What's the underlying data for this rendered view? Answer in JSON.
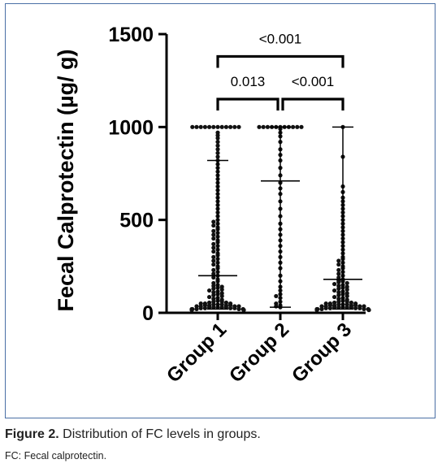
{
  "chart_data": {
    "type": "scatter",
    "ylabel": "Fecal Calprotectin  (µg/ g)",
    "yticks": [
      0,
      500,
      1000,
      1500
    ],
    "ylim": [
      0,
      1500
    ],
    "categories": [
      "Group 1",
      "Group 2",
      "Group 3"
    ],
    "summary": [
      {
        "category": "Group 1",
        "median": 200,
        "upper": 820,
        "lower": 20
      },
      {
        "category": "Group 2",
        "median": 710,
        "upper": 1000,
        "lower": 30
      },
      {
        "category": "Group 3",
        "median": 180,
        "upper": 1000,
        "lower": 20
      }
    ],
    "brackets": [
      {
        "from": "Group 1",
        "to": "Group 3",
        "label": "<0.001",
        "y": 1380
      },
      {
        "from": "Group 1",
        "to": "Group 2",
        "label": "0.013",
        "y": 1150
      },
      {
        "from": "Group 2",
        "to": "Group 3",
        "label": "<0.001",
        "y": 1150
      }
    ],
    "series": [
      {
        "category": "Group 1",
        "values": [
          1000,
          1000,
          1000,
          1000,
          1000,
          1000,
          1000,
          1000,
          1000,
          1000,
          1000,
          1000,
          970,
          955,
          940,
          920,
          900,
          880,
          860,
          840,
          820,
          800,
          780,
          760,
          740,
          720,
          700,
          680,
          660,
          640,
          620,
          600,
          580,
          560,
          540,
          520,
          500,
          490,
          480,
          470,
          460,
          450,
          440,
          430,
          420,
          410,
          400,
          390,
          380,
          370,
          360,
          350,
          340,
          330,
          320,
          310,
          300,
          290,
          280,
          270,
          260,
          250,
          240,
          230,
          220,
          210,
          200,
          190,
          180,
          170,
          160,
          150,
          145,
          140,
          135,
          130,
          125,
          120,
          115,
          110,
          105,
          100,
          95,
          90,
          85,
          80,
          75,
          70,
          65,
          60,
          60,
          55,
          55,
          50,
          50,
          50,
          45,
          45,
          45,
          40,
          40,
          40,
          40,
          35,
          35,
          35,
          35,
          30,
          30,
          30,
          30,
          30,
          25,
          25,
          25,
          25,
          20,
          20,
          20,
          20,
          20,
          15,
          15,
          15
        ]
      },
      {
        "category": "Group 2",
        "values": [
          1000,
          1000,
          1000,
          1000,
          1000,
          1000,
          1000,
          1000,
          1000,
          1000,
          1000,
          990,
          970,
          950,
          920,
          880,
          850,
          820,
          780,
          740,
          700,
          670,
          640,
          600,
          560,
          520,
          480,
          450,
          420,
          390,
          360,
          330,
          300,
          270,
          240,
          200,
          170,
          140,
          120,
          100,
          90,
          80,
          60,
          50,
          40,
          35,
          30
        ]
      },
      {
        "category": "Group 3",
        "values": [
          1000,
          840,
          680,
          650,
          620,
          600,
          580,
          560,
          540,
          520,
          500,
          480,
          460,
          440,
          420,
          400,
          380,
          360,
          340,
          320,
          300,
          290,
          280,
          270,
          260,
          250,
          240,
          230,
          220,
          210,
          200,
          190,
          180,
          175,
          170,
          165,
          160,
          155,
          150,
          145,
          140,
          135,
          130,
          125,
          120,
          115,
          110,
          105,
          100,
          95,
          90,
          85,
          80,
          75,
          70,
          65,
          60,
          60,
          55,
          55,
          50,
          50,
          50,
          45,
          45,
          45,
          40,
          40,
          40,
          40,
          35,
          35,
          35,
          35,
          30,
          30,
          30,
          30,
          30,
          25,
          25,
          25,
          25,
          20,
          20,
          20,
          20,
          20,
          15,
          15,
          15
        ]
      }
    ]
  },
  "caption": {
    "figure_label": "Figure 2.",
    "text": " Distribution of FC levels in groups.",
    "note": "FC: Fecal calprotectin."
  }
}
